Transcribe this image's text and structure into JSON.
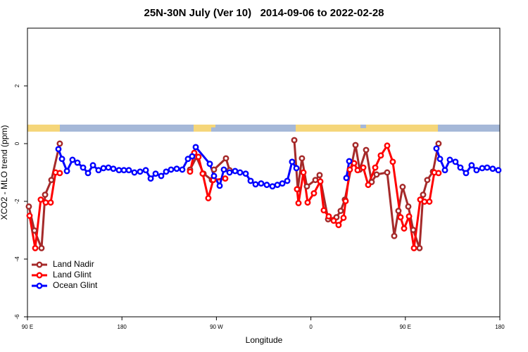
{
  "chart_data": {
    "type": "line",
    "title": "25N-30N July (Ver 10)   2014-09-06 to 2022-02-28",
    "xlabel": "Longitude",
    "ylabel": "XCO2 - MLO trend (ppm)",
    "xlim": [
      90,
      540
    ],
    "xticks": [
      {
        "value": 90,
        "label": "90 E"
      },
      {
        "value": 180,
        "label": "180"
      },
      {
        "value": 270,
        "label": "90 W"
      },
      {
        "value": 360,
        "label": "0"
      },
      {
        "value": 450,
        "label": "90 E"
      },
      {
        "value": 540,
        "label": "180"
      }
    ],
    "ylim": [
      -6,
      4
    ],
    "yticks": [
      -6,
      -4,
      -2,
      0,
      2
    ],
    "grid": false,
    "legend": "bottom-left",
    "series": [
      {
        "name": "Land Nadir",
        "color": "#a52a2a",
        "x": [
          91.3,
          96.7,
          103.4,
          106.8,
          112.8,
          120.8,
          null,
          244.9,
          251.0,
          257.7,
          265.7,
          267.7,
          279.1,
          282.5,
          null,
          344.2,
          347.5,
          351.5,
          356.2,
          364.3,
          368.3,
          376.4,
          384.4,
          388.4,
          392.4,
          402.5,
          406.5,
          412.6,
          417.9,
          422.6,
          432.7,
          439.4,
          443.4,
          447.4,
          452.8,
          457.5,
          463.5,
          466.9,
          470.9,
          476.3,
          481.6
        ],
        "values": [
          -2.18,
          -3.01,
          -3.62,
          -1.77,
          -1.26,
          0.0,
          null,
          -0.9,
          -0.46,
          -1.04,
          -1.26,
          -0.9,
          -0.51,
          -0.92,
          null,
          0.12,
          -1.58,
          -0.51,
          -1.48,
          -1.26,
          -1.09,
          -2.62,
          -2.55,
          -2.33,
          -1.94,
          -0.05,
          -0.9,
          -0.22,
          -1.33,
          -1.07,
          -1.0,
          -3.2,
          -2.33,
          -1.5,
          -2.18,
          -2.99,
          -3.62,
          -1.77,
          -1.26,
          -0.97,
          0.0
        ]
      },
      {
        "name": "Land Glint",
        "color": "#ff0000",
        "x": [
          92.0,
          97.4,
          102.7,
          107.4,
          112.1,
          116.8,
          120.8,
          null,
          244.9,
          248.9,
          252.9,
          256.9,
          262.3,
          267.0,
          278.4,
          null,
          346.8,
          348.2,
          352.9,
          356.9,
          362.9,
          369.0,
          372.3,
          377.0,
          381.7,
          386.4,
          391.1,
          393.1,
          397.1,
          401.2,
          404.5,
          409.9,
          414.6,
          421.3,
          426.6,
          432.7,
          438.0,
          445.4,
          448.8,
          453.5,
          458.2,
          464.2,
          468.2,
          472.9,
          477.6,
          481.6
        ],
        "values": [
          -2.5,
          -3.62,
          -1.94,
          -2.04,
          -2.04,
          -1.0,
          -1.02,
          null,
          -0.97,
          -0.32,
          -0.46,
          -1.04,
          -1.89,
          -1.26,
          -1.21,
          null,
          -1.58,
          -2.06,
          -1.0,
          -2.04,
          -1.72,
          -1.31,
          -2.31,
          -2.52,
          -2.67,
          -2.82,
          -2.57,
          -1.99,
          -0.9,
          -0.68,
          -0.92,
          -0.83,
          -1.43,
          -0.83,
          -0.41,
          -0.07,
          -0.63,
          -2.55,
          -2.94,
          -2.52,
          -3.62,
          -1.94,
          -2.01,
          -2.01,
          -1.0,
          -1.02
        ]
      },
      {
        "name": "Ocean Glint",
        "color": "#0000ff",
        "x": [
          119.5,
          122.9,
          127.6,
          132.9,
          137.6,
          143.0,
          147.7,
          152.4,
          157.7,
          162.4,
          167.1,
          171.8,
          177.2,
          181.9,
          186.6,
          191.9,
          197.3,
          202.7,
          207.4,
          212.1,
          217.4,
          222.1,
          226.8,
          232.2,
          237.5,
          242.9,
          246.9,
          250.3,
          263.7,
          267.7,
          273.1,
          277.1,
          282.5,
          287.8,
          292.5,
          297.9,
          302.6,
          307.3,
          312.6,
          318.0,
          323.4,
          328.1,
          332.8,
          337.5,
          342.1,
          346.2,
          null,
          393.8,
          396.5,
          null,
          479.6,
          483.0,
          487.7,
          492.4,
          497.7,
          502.4,
          507.8,
          513.1,
          517.8,
          523.2,
          527.9,
          533.2,
          538.6
        ],
        "values": [
          -0.19,
          -0.53,
          -0.95,
          -0.56,
          -0.66,
          -0.83,
          -1.02,
          -0.75,
          -0.92,
          -0.85,
          -0.83,
          -0.87,
          -0.92,
          -0.92,
          -0.92,
          -1.0,
          -0.97,
          -0.92,
          -1.21,
          -1.04,
          -1.12,
          -0.97,
          -0.9,
          -0.87,
          -0.9,
          -0.53,
          -0.44,
          -0.12,
          -0.7,
          -1.12,
          -1.46,
          -0.9,
          -1.0,
          -0.95,
          -1.0,
          -1.04,
          -1.29,
          -1.41,
          -1.38,
          -1.43,
          -1.48,
          -1.43,
          -1.38,
          -1.29,
          -0.63,
          -0.85,
          null,
          -1.19,
          -0.61,
          null,
          -0.17,
          -0.53,
          -0.92,
          -0.56,
          -0.63,
          -0.83,
          -1.02,
          -0.75,
          -0.92,
          -0.85,
          -0.83,
          -0.87,
          -0.92
        ]
      }
    ]
  }
}
